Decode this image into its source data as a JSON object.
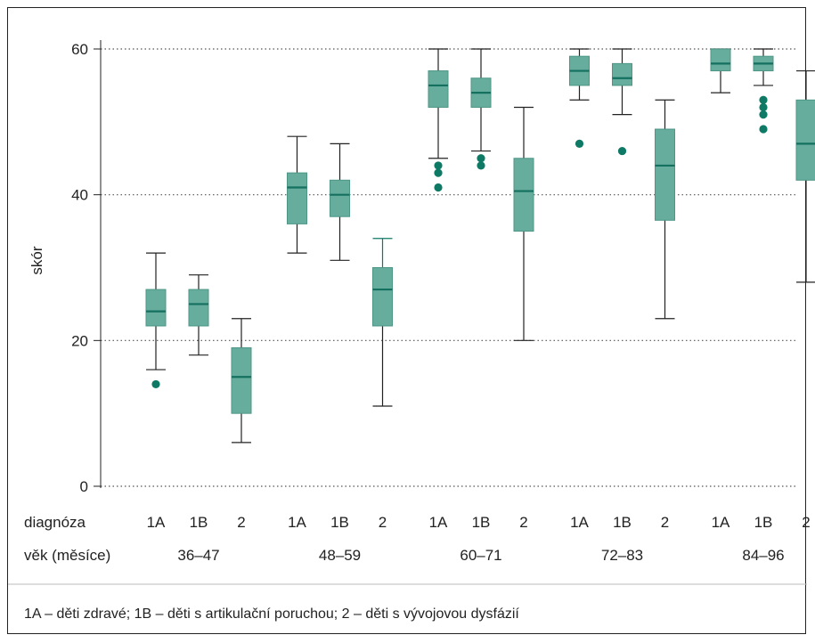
{
  "chart_data": {
    "type": "box",
    "ylabel": "skór",
    "ylim": [
      0,
      60
    ],
    "yticks": [
      0,
      20,
      40,
      60
    ],
    "grid": true,
    "row_label_diagnosis": "diagnóza",
    "row_label_age": "věk (měsíce)",
    "age_groups": [
      "36–47",
      "48–59",
      "60–71",
      "72–83",
      "84–96"
    ],
    "diagnoses": [
      "1A",
      "1B",
      "2"
    ],
    "boxes": [
      {
        "age": "36–47",
        "diagnosis": "1A",
        "min": 16,
        "q1": 22,
        "median": 24,
        "q3": 27,
        "max": 32,
        "outliers": [
          14
        ]
      },
      {
        "age": "36–47",
        "diagnosis": "1B",
        "min": 18,
        "q1": 22,
        "median": 25,
        "q3": 27,
        "max": 29,
        "outliers": []
      },
      {
        "age": "36–47",
        "diagnosis": "2",
        "min": 6,
        "q1": 10,
        "median": 15,
        "q3": 19,
        "max": 23,
        "outliers": []
      },
      {
        "age": "48–59",
        "diagnosis": "1A",
        "min": 32,
        "q1": 36,
        "median": 41,
        "q3": 43,
        "max": 48,
        "outliers": []
      },
      {
        "age": "48–59",
        "diagnosis": "1B",
        "min": 31,
        "q1": 37,
        "median": 40,
        "q3": 42,
        "max": 47,
        "outliers": []
      },
      {
        "age": "48–59",
        "diagnosis": "2",
        "min": 11,
        "q1": 22,
        "median": 27,
        "q3": 30,
        "max": 34,
        "outliers": []
      },
      {
        "age": "60–71",
        "diagnosis": "1A",
        "min": 45,
        "q1": 52,
        "median": 55,
        "q3": 57,
        "max": 60,
        "outliers": [
          44,
          43,
          41
        ]
      },
      {
        "age": "60–71",
        "diagnosis": "1B",
        "min": 46,
        "q1": 52,
        "median": 54,
        "q3": 56,
        "max": 60,
        "outliers": [
          45,
          44
        ]
      },
      {
        "age": "60–71",
        "diagnosis": "2",
        "min": 20,
        "q1": 35,
        "median": 40.5,
        "q3": 45,
        "max": 52,
        "outliers": []
      },
      {
        "age": "72–83",
        "diagnosis": "1A",
        "min": 53,
        "q1": 55,
        "median": 57,
        "q3": 59,
        "max": 60,
        "outliers": [
          47
        ]
      },
      {
        "age": "72–83",
        "diagnosis": "1B",
        "min": 51,
        "q1": 55,
        "median": 56,
        "q3": 58,
        "max": 60,
        "outliers": [
          46
        ]
      },
      {
        "age": "72–83",
        "diagnosis": "2",
        "min": 23,
        "q1": 36.5,
        "median": 44,
        "q3": 49,
        "max": 53,
        "outliers": []
      },
      {
        "age": "84–96",
        "diagnosis": "1A",
        "min": 54,
        "q1": 57,
        "median": 58,
        "q3": 60,
        "max": 60,
        "outliers": []
      },
      {
        "age": "84–96",
        "diagnosis": "1B",
        "min": 55,
        "q1": 57,
        "median": 58,
        "q3": 59,
        "max": 60,
        "outliers": [
          53,
          52,
          51,
          49
        ]
      },
      {
        "age": "84–96",
        "diagnosis": "2",
        "min": 28,
        "q1": 42,
        "median": 47,
        "q3": 53,
        "max": 57,
        "outliers": []
      }
    ],
    "footnote": "1A – děti zdravé; 1B – děti s artikulační poruchou; 2 – děti s vývojovou dysfázií",
    "colors": {
      "box_fill": "#66ad9e",
      "box_stroke": "#4d9686",
      "median": "#14705f",
      "whisker": "#222222",
      "outlier": "#0e7a66",
      "grid": "#555555"
    }
  }
}
